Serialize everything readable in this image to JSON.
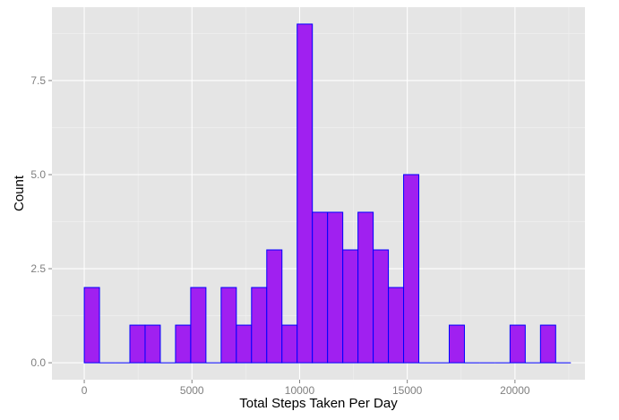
{
  "chart_data": {
    "type": "bar",
    "title": "",
    "xlabel": "Total Steps Taken Per Day",
    "ylabel": "Count",
    "bin_width": 706.1,
    "bins": [
      {
        "x": 354,
        "count": 2
      },
      {
        "x": 1060,
        "count": 0
      },
      {
        "x": 1766,
        "count": 0
      },
      {
        "x": 2472,
        "count": 1
      },
      {
        "x": 3178,
        "count": 1
      },
      {
        "x": 3885,
        "count": 0
      },
      {
        "x": 4591,
        "count": 1
      },
      {
        "x": 5297,
        "count": 2
      },
      {
        "x": 6003,
        "count": 0
      },
      {
        "x": 6709,
        "count": 2
      },
      {
        "x": 7415,
        "count": 1
      },
      {
        "x": 8121,
        "count": 2
      },
      {
        "x": 8827,
        "count": 3
      },
      {
        "x": 9533,
        "count": 1
      },
      {
        "x": 10239,
        "count": 9
      },
      {
        "x": 10945,
        "count": 4
      },
      {
        "x": 11651,
        "count": 4
      },
      {
        "x": 12358,
        "count": 3
      },
      {
        "x": 13064,
        "count": 4
      },
      {
        "x": 13770,
        "count": 3
      },
      {
        "x": 14476,
        "count": 2
      },
      {
        "x": 15182,
        "count": 5
      },
      {
        "x": 15888,
        "count": 0
      },
      {
        "x": 16594,
        "count": 0
      },
      {
        "x": 17300,
        "count": 1
      },
      {
        "x": 18006,
        "count": 0
      },
      {
        "x": 18712,
        "count": 0
      },
      {
        "x": 19418,
        "count": 0
      },
      {
        "x": 20124,
        "count": 1
      },
      {
        "x": 20830,
        "count": 0
      },
      {
        "x": 21537,
        "count": 1
      },
      {
        "x": 22243,
        "count": 0
      }
    ],
    "xlim": [
      -1500,
      23250
    ],
    "ylim": [
      -0.45,
      9.45
    ],
    "x_ticks": [
      0,
      5000,
      10000,
      15000,
      20000
    ],
    "x_tick_labels": [
      "0",
      "5000",
      "10000",
      "15000",
      "20000"
    ],
    "y_ticks": [
      0,
      2.5,
      5,
      7.5
    ],
    "y_tick_labels": [
      "0.0",
      "2.5",
      "5.0",
      "7.5"
    ],
    "grid": true,
    "colors": {
      "panel_background": "#e5e5e5",
      "grid_major": "#ffffff",
      "grid_minor": "#f2f2f2",
      "bar_fill": "#a020f0",
      "bar_outline": "#0000ff",
      "tick_text": "#7f7f7f",
      "axis_title": "#000000"
    }
  }
}
